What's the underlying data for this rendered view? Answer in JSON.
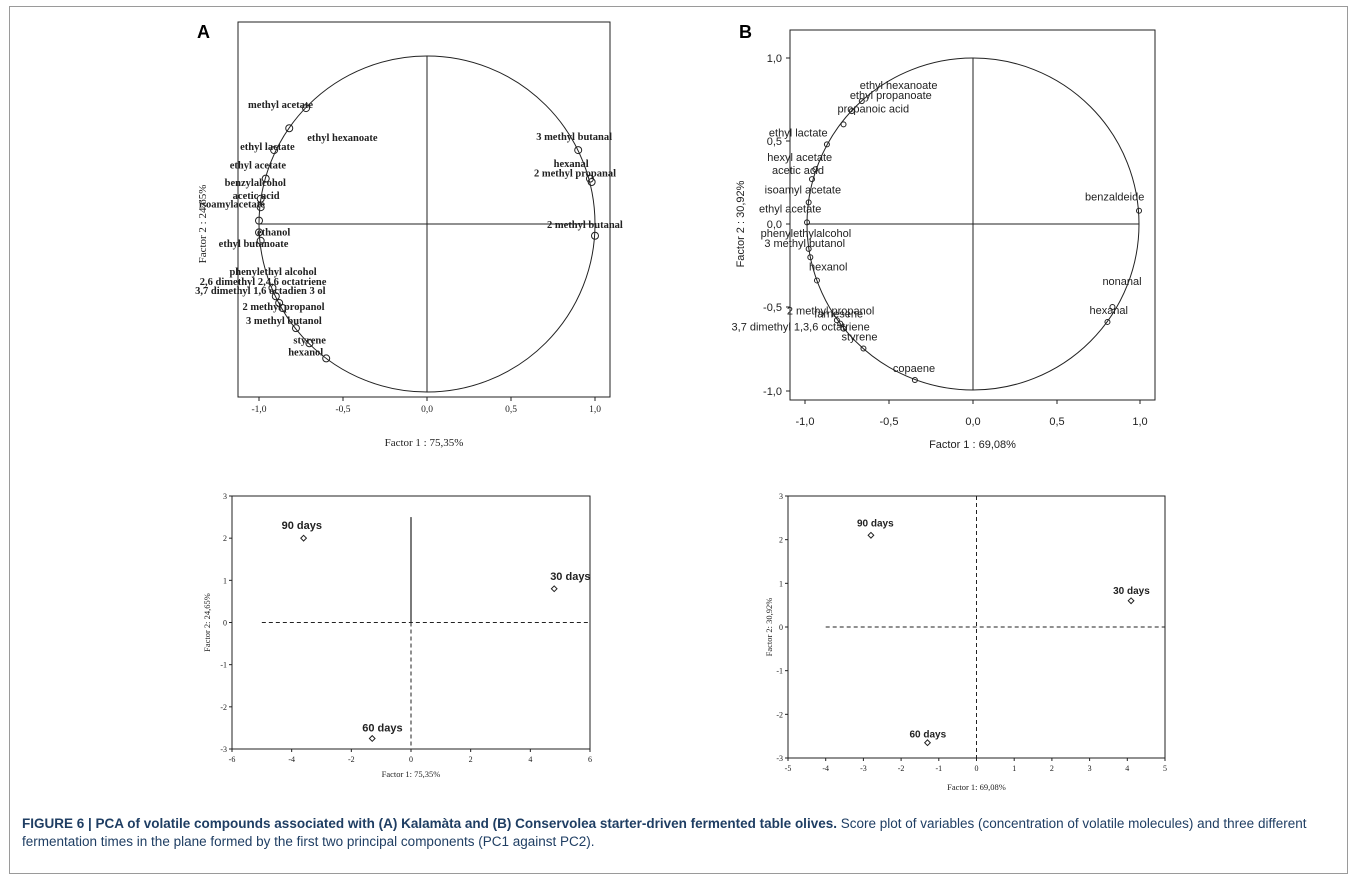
{
  "chart_data": [
    {
      "panel": "A",
      "type": "scatter",
      "variant": "correlation-circle",
      "xlabel": "Factor 1 : 75,35%",
      "ylabel": "Factor 2 : 24,65%",
      "xlim": [
        -1.1,
        1.1
      ],
      "ylim": [
        -1.0,
        1.0
      ],
      "xticks": [
        "-1,0",
        "-0,5",
        "0,0",
        "0,5",
        "1,0"
      ],
      "points": [
        {
          "label": "methyl acetate",
          "x": -0.72,
          "y": 0.69
        },
        {
          "label": "ethyl hexanoate",
          "x": -0.82,
          "y": 0.57
        },
        {
          "label": "ethyl lactate",
          "x": -0.91,
          "y": 0.44
        },
        {
          "label": "ethyl acetate",
          "x": -0.96,
          "y": 0.27
        },
        {
          "label": "benzylalcohol",
          "x": -0.99,
          "y": 0.15
        },
        {
          "label": "acetic acid",
          "x": -0.99,
          "y": 0.1
        },
        {
          "label": "isoamylacetate",
          "x": -1.0,
          "y": 0.02
        },
        {
          "label": "ethanol",
          "x": -1.0,
          "y": -0.05
        },
        {
          "label": "ethyl butanoate",
          "x": -0.99,
          "y": -0.1
        },
        {
          "label": "phenylethyl alcohol",
          "x": -0.92,
          "y": -0.38
        },
        {
          "label": "2,6 dimethyl 2,4,6 octatriene",
          "x": -0.9,
          "y": -0.43
        },
        {
          "label": "3,7 dimethyl 1,6 octadien 3 ol",
          "x": -0.88,
          "y": -0.47
        },
        {
          "label": "2 methyl propanol",
          "x": -0.86,
          "y": -0.5
        },
        {
          "label": "3 methyl butanol",
          "x": -0.78,
          "y": -0.62
        },
        {
          "label": "styrene",
          "x": -0.7,
          "y": -0.71
        },
        {
          "label": "hexanol",
          "x": -0.6,
          "y": -0.8
        },
        {
          "label": "3 methyl butanal",
          "x": 0.9,
          "y": 0.44
        },
        {
          "label": "2 methyl propanal",
          "x": 0.97,
          "y": 0.27
        },
        {
          "label": "hexanal",
          "x": 0.98,
          "y": 0.25
        },
        {
          "label": "2 methyl butanal",
          "x": 1.0,
          "y": -0.07
        }
      ]
    },
    {
      "panel": "B",
      "type": "scatter",
      "variant": "correlation-circle",
      "xlabel": "Factor 1 : 69,08%",
      "ylabel": "Factor 2 : 30,92%",
      "xlim": [
        -1.1,
        1.1
      ],
      "ylim": [
        -1.05,
        1.05
      ],
      "xticks": [
        "-1,0",
        "-0,5",
        "0,0",
        "0,5",
        "1,0"
      ],
      "yticks": [
        "1,0",
        "0,5",
        "0,0",
        "-0,5",
        "-1,0"
      ],
      "points": [
        {
          "label": "ethyl hexanoate",
          "x": -0.67,
          "y": 0.74
        },
        {
          "label": "ethyl propanoate",
          "x": -0.73,
          "y": 0.68
        },
        {
          "label": "propanoic acid",
          "x": -0.78,
          "y": 0.6
        },
        {
          "label": "ethyl lactate",
          "x": -0.88,
          "y": 0.48
        },
        {
          "label": "hexyl acetate",
          "x": -0.95,
          "y": 0.33
        },
        {
          "label": "acetic acid",
          "x": -0.97,
          "y": 0.27
        },
        {
          "label": "isoamyl acetate",
          "x": -0.99,
          "y": 0.13
        },
        {
          "label": "ethyl acetate",
          "x": -1.0,
          "y": 0.01
        },
        {
          "label": "phenylethylalcohol",
          "x": -0.99,
          "y": -0.15
        },
        {
          "label": "3 methyl butanol",
          "x": -0.98,
          "y": -0.2
        },
        {
          "label": "hexanol",
          "x": -0.94,
          "y": -0.34
        },
        {
          "label": "2 methyl propanol",
          "x": -0.82,
          "y": -0.58
        },
        {
          "label": "farnesene",
          "x": -0.8,
          "y": -0.6
        },
        {
          "label": "3,7 dimethyl 1,3,6 octatriene",
          "x": -0.78,
          "y": -0.63
        },
        {
          "label": "styrene",
          "x": -0.66,
          "y": -0.75
        },
        {
          "label": "copaene",
          "x": -0.35,
          "y": -0.94
        },
        {
          "label": "benzaldeide",
          "x": 1.0,
          "y": 0.08
        },
        {
          "label": "nonanal",
          "x": 0.84,
          "y": -0.5
        },
        {
          "label": "hexanal",
          "x": 0.81,
          "y": -0.59
        }
      ]
    },
    {
      "panel": "A-scores",
      "type": "scatter",
      "xlabel": "Factor 1: 75,35%",
      "ylabel": "Factor 2: 24,65%",
      "xlim": [
        -6,
        6
      ],
      "ylim": [
        -3,
        3
      ],
      "xticks": [
        "-6",
        "-4",
        "-2",
        "0",
        "2",
        "4",
        "6"
      ],
      "yticks": [
        "3",
        "2",
        "1",
        "0",
        "-1",
        "-2",
        "-3"
      ],
      "points": [
        {
          "label": "90 days",
          "x": -3.6,
          "y": 2.0
        },
        {
          "label": "30 days",
          "x": 4.8,
          "y": 0.8
        },
        {
          "label": "60 days",
          "x": -1.3,
          "y": -2.75
        }
      ]
    },
    {
      "panel": "B-scores",
      "type": "scatter",
      "xlabel": "Factor 1: 69,08%",
      "ylabel": "Factor 2: 30,92%",
      "xlim": [
        -5,
        5
      ],
      "ylim": [
        -3,
        3
      ],
      "xticks": [
        "-5",
        "-4",
        "-3",
        "-2",
        "-1",
        "0",
        "1",
        "2",
        "3",
        "4",
        "5"
      ],
      "yticks": [
        "3",
        "2",
        "1",
        "0",
        "-1",
        "-2",
        "-3"
      ],
      "points": [
        {
          "label": "90 days",
          "x": -2.8,
          "y": 2.1
        },
        {
          "label": "30 days",
          "x": 4.1,
          "y": 0.6
        },
        {
          "label": "60 days",
          "x": -1.3,
          "y": -2.65
        }
      ]
    }
  ],
  "caption": {
    "lead": "FIGURE 6 | PCA of volatile compounds associated with (A) Kalamàta and (B) Conservolea starter-driven fermented table olives.",
    "body": " Score plot of variables (concentration of volatile molecules) and three different fermentation times in the plane formed by the first two principal components (PC1 against PC2)."
  },
  "colors": {
    "ink": "#222222",
    "caption": "#1f3e63",
    "frame": "#9a9a9a"
  }
}
